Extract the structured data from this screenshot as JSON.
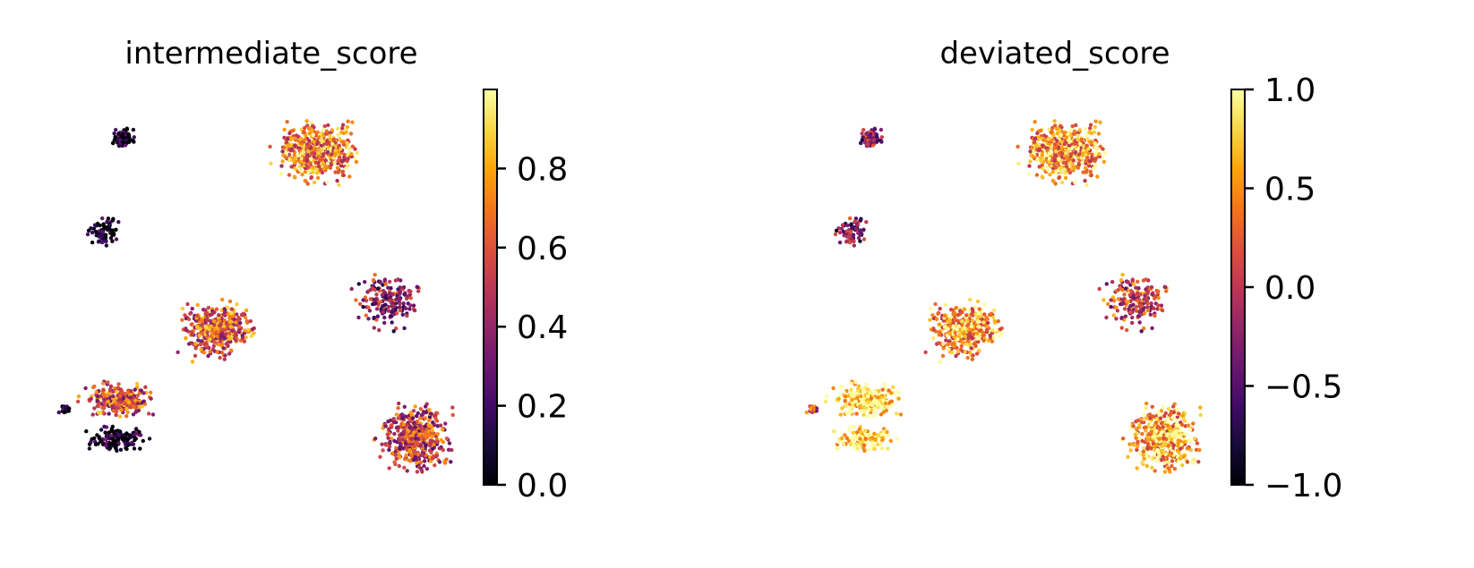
{
  "chart_data": [
    {
      "type": "scatter",
      "title": "intermediate_score",
      "xlabel": "",
      "ylabel": "",
      "colormap": "inferno",
      "colorbar": {
        "min": 0.0,
        "max": 1.0,
        "ticks": [
          0.0,
          0.2,
          0.4,
          0.6,
          0.8
        ],
        "tick_labels": [
          "0.0",
          "0.2",
          "0.4",
          "0.6",
          "0.8"
        ]
      },
      "clusters": [
        {
          "x": 1.2,
          "y": 8.3,
          "value": 0.02
        },
        {
          "x": 0.9,
          "y": 6.4,
          "value": 0.02
        },
        {
          "x": 4.1,
          "y": 8.0,
          "value": 0.72
        },
        {
          "x": 2.6,
          "y": 4.4,
          "value": 0.62
        },
        {
          "x": 1.1,
          "y": 3.0,
          "value": 0.6
        },
        {
          "x": 0.3,
          "y": 2.8,
          "value": 0.02
        },
        {
          "x": 1.1,
          "y": 2.2,
          "value": 0.06
        },
        {
          "x": 5.2,
          "y": 5.0,
          "value": 0.4
        },
        {
          "x": 5.6,
          "y": 2.2,
          "value": 0.52
        }
      ]
    },
    {
      "type": "scatter",
      "title": "deviated_score",
      "xlabel": "",
      "ylabel": "",
      "colormap": "inferno",
      "colorbar": {
        "min": -1.0,
        "max": 1.0,
        "ticks": [
          -1.0,
          -0.5,
          0.0,
          0.5,
          1.0
        ],
        "tick_labels": [
          "−1.0",
          "−0.5",
          "0.0",
          "0.5",
          "1.0"
        ]
      },
      "clusters": [
        {
          "x": 1.2,
          "y": 8.3,
          "value": -0.3
        },
        {
          "x": 0.9,
          "y": 6.4,
          "value": -0.3
        },
        {
          "x": 4.1,
          "y": 8.0,
          "value": 0.55
        },
        {
          "x": 2.6,
          "y": 4.4,
          "value": 0.55
        },
        {
          "x": 1.1,
          "y": 3.0,
          "value": 0.95
        },
        {
          "x": 0.3,
          "y": 2.8,
          "value": 0.2
        },
        {
          "x": 1.1,
          "y": 2.2,
          "value": 0.95
        },
        {
          "x": 5.2,
          "y": 5.0,
          "value": 0.1
        },
        {
          "x": 5.6,
          "y": 2.2,
          "value": 0.6
        }
      ]
    }
  ]
}
